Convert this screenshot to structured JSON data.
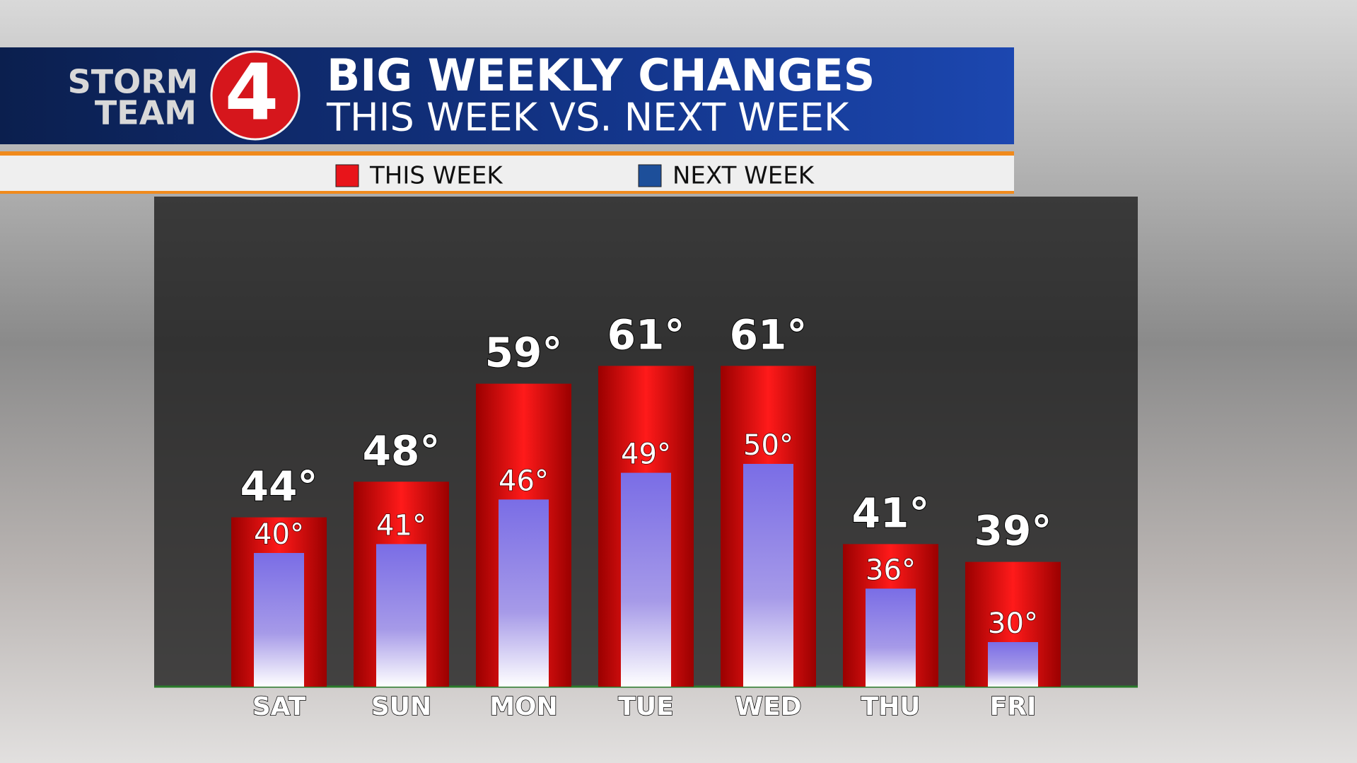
{
  "logo": {
    "line1": "STORM",
    "line2": "TEAM",
    "number": "4"
  },
  "chart_data": {
    "type": "bar",
    "title": "BIG WEEKLY CHANGES",
    "subtitle": "THIS WEEK VS. NEXT WEEK",
    "categories": [
      "SAT",
      "SUN",
      "MON",
      "TUE",
      "WED",
      "THU",
      "FRI"
    ],
    "series": [
      {
        "name": "THIS WEEK",
        "color": "#e8141a",
        "values": [
          44,
          48,
          59,
          61,
          61,
          41,
          39
        ],
        "value_labels": [
          "44°",
          "48°",
          "59°",
          "61°",
          "61°",
          "41°",
          "39°"
        ]
      },
      {
        "name": "NEXT WEEK",
        "color": "#1d4f9a",
        "values": [
          40,
          41,
          46,
          49,
          50,
          36,
          30
        ],
        "value_labels": [
          "40°",
          "41°",
          "46°",
          "49°",
          "50°",
          "36°",
          "30°"
        ]
      }
    ],
    "ylim": [
      25,
      80
    ]
  }
}
